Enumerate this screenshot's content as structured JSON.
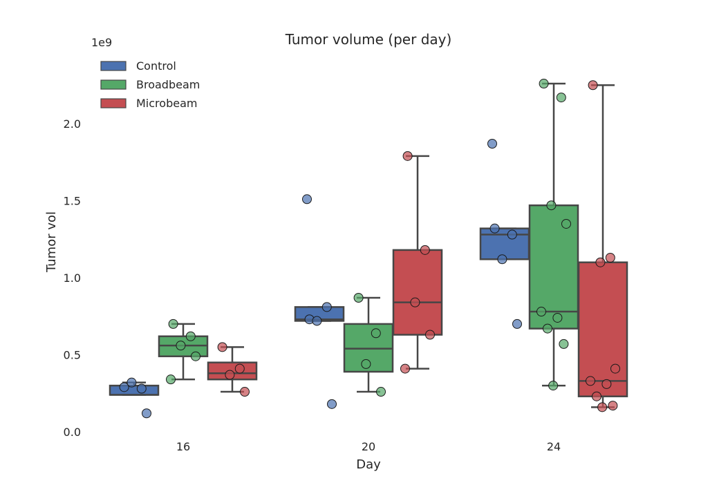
{
  "chart_data": {
    "type": "box",
    "title": "Tumor volume (per day)",
    "xlabel": "Day",
    "ylabel": "Tumor vol",
    "y_exponent_label": "1e9",
    "categories": [
      "16",
      "20",
      "24"
    ],
    "yticks": [
      0.0,
      0.5,
      1.0,
      1.5,
      2.0
    ],
    "ytick_labels": [
      "0.0",
      "0.5",
      "1.0",
      "1.5",
      "2.0"
    ],
    "ylim": [
      -0.05,
      2.3
    ],
    "grid": false,
    "legend_position": "top-left",
    "series": [
      {
        "name": "Control",
        "color": "#4c72b0",
        "boxes": [
          {
            "whislo": 0.24,
            "q1": 0.24,
            "med": 0.24,
            "q3": 0.3,
            "whishi": 0.32
          },
          {
            "whislo": 0.72,
            "q1": 0.72,
            "med": 0.73,
            "q3": 0.81,
            "whishi": 0.81
          },
          {
            "whislo": 1.12,
            "q1": 1.12,
            "med": 1.28,
            "q3": 1.32,
            "whishi": 1.32
          }
        ],
        "points": [
          [
            0.29,
            0.28,
            0.32,
            0.12
          ],
          [
            0.73,
            0.81,
            0.72,
            0.18,
            1.51
          ],
          [
            1.32,
            1.28,
            1.12,
            0.7,
            1.87
          ]
        ]
      },
      {
        "name": "Broadbeam",
        "color": "#55a868",
        "boxes": [
          {
            "whislo": 0.34,
            "q1": 0.49,
            "med": 0.56,
            "q3": 0.62,
            "whishi": 0.7
          },
          {
            "whislo": 0.26,
            "q1": 0.39,
            "med": 0.54,
            "q3": 0.7,
            "whishi": 0.87
          },
          {
            "whislo": 0.3,
            "q1": 0.67,
            "med": 0.78,
            "q3": 1.47,
            "whishi": 2.26
          }
        ],
        "points": [
          [
            0.7,
            0.62,
            0.56,
            0.49,
            0.34
          ],
          [
            0.87,
            0.64,
            0.44,
            0.26
          ],
          [
            2.26,
            2.17,
            1.47,
            1.35,
            0.78,
            0.74,
            0.67,
            0.57,
            0.3
          ]
        ]
      },
      {
        "name": "Microbeam",
        "color": "#c44e52",
        "boxes": [
          {
            "whislo": 0.26,
            "q1": 0.34,
            "med": 0.38,
            "q3": 0.45,
            "whishi": 0.55
          },
          {
            "whislo": 0.41,
            "q1": 0.63,
            "med": 0.84,
            "q3": 1.18,
            "whishi": 1.79
          },
          {
            "whislo": 0.16,
            "q1": 0.23,
            "med": 0.33,
            "q3": 1.1,
            "whishi": 2.25
          }
        ],
        "points": [
          [
            0.55,
            0.41,
            0.37,
            0.26
          ],
          [
            1.79,
            1.18,
            0.84,
            0.63,
            0.41
          ],
          [
            2.25,
            1.13,
            1.1,
            0.41,
            0.33,
            0.31,
            0.23,
            0.17,
            0.16
          ]
        ]
      }
    ]
  }
}
